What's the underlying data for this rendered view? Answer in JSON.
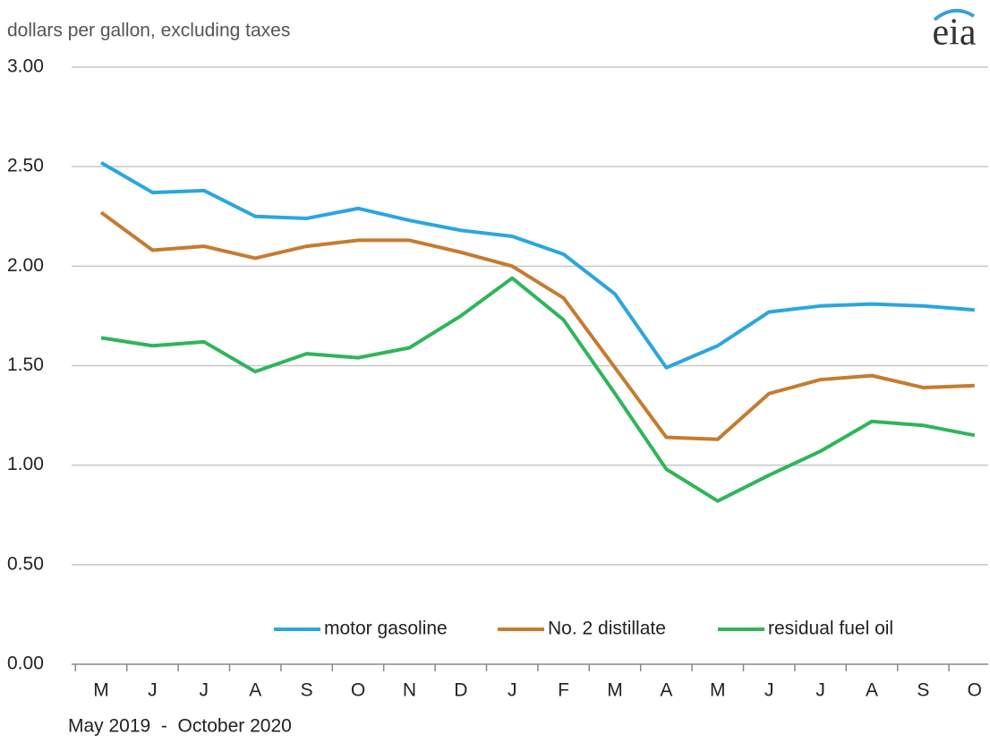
{
  "chart_data": {
    "type": "line",
    "y_axis_label": "dollars per gallon, excluding taxes",
    "x_axis_label": "May 2019  -  October 2020",
    "logo": "eia",
    "categories": [
      "M",
      "J",
      "J",
      "A",
      "S",
      "O",
      "N",
      "D",
      "J",
      "F",
      "M",
      "A",
      "M",
      "J",
      "J",
      "A",
      "S",
      "O"
    ],
    "series": [
      {
        "name": "motor gasoline",
        "color": "#2aa6e0",
        "values": [
          2.52,
          2.37,
          2.38,
          2.25,
          2.24,
          2.29,
          2.23,
          2.18,
          2.15,
          2.06,
          1.86,
          1.49,
          1.6,
          1.77,
          1.8,
          1.81,
          1.8,
          1.78
        ]
      },
      {
        "name": "No. 2 distillate",
        "color": "#c67b2e",
        "values": [
          2.27,
          2.08,
          2.1,
          2.04,
          2.1,
          2.13,
          2.13,
          2.07,
          2.0,
          1.84,
          1.49,
          1.14,
          1.13,
          1.36,
          1.43,
          1.45,
          1.39,
          1.4
        ]
      },
      {
        "name": "residual fuel oil",
        "color": "#2fb55a",
        "values": [
          1.64,
          1.6,
          1.62,
          1.47,
          1.56,
          1.54,
          1.59,
          1.75,
          1.94,
          1.73,
          1.36,
          0.98,
          0.82,
          0.95,
          1.07,
          1.22,
          1.2,
          1.15
        ]
      }
    ],
    "ylim": [
      0,
      3
    ],
    "yticks": [
      {
        "value": 0,
        "label": "0.00"
      },
      {
        "value": 0.5,
        "label": "0.50"
      },
      {
        "value": 1,
        "label": "1.00"
      },
      {
        "value": 1.5,
        "label": "1.50"
      },
      {
        "value": 2,
        "label": "2.00"
      },
      {
        "value": 2.5,
        "label": "2.50"
      },
      {
        "value": 3,
        "label": "3.00"
      }
    ],
    "grid": true,
    "legend": "bottom"
  }
}
